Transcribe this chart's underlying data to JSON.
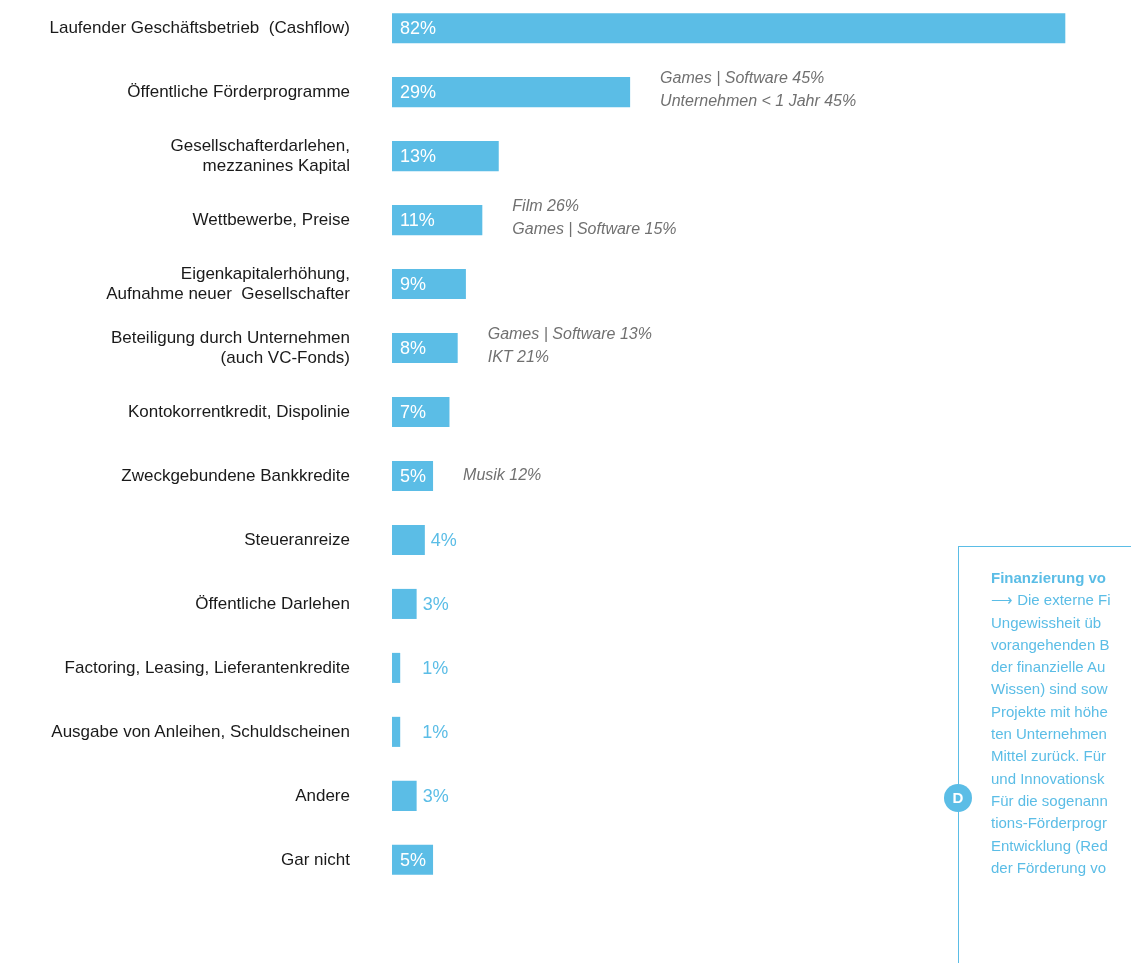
{
  "chart_data": [
    {
      "type": "bar",
      "orientation": "horizontal",
      "categories": [
        "Laufender Geschäftsbetrieb  (Cashflow)",
        "Öffentliche Förderprogramme",
        "Gesellschafterdarlehen,\nmezzanines Kapital",
        "Wettbewerbe, Preise",
        "Eigenkapitalerhöhung,\nAufnahme neuer  Gesellschafter",
        "Beteiligung durch Unternehmen\n(auch VC-Fonds)",
        "Kontokorrentkredit, Dispolinie",
        "Zweckgebundene Bankkredite",
        "Steueranreize",
        "Öffentliche Darlehen",
        "Factoring, Leasing, Lieferantenkredite",
        "Ausgabe von Anleihen, Schuldscheinen",
        "Andere",
        "Gar nicht"
      ],
      "values": [
        82,
        29,
        13,
        11,
        9,
        8,
        7,
        5,
        4,
        3,
        1,
        1,
        3,
        5
      ],
      "value_labels": [
        "82%",
        "29%",
        "13%",
        "11%",
        "9%",
        "8%",
        "7%",
        "5%",
        "4%",
        "3%",
        "1%",
        "1%",
        "3%",
        "5%"
      ],
      "color": "#5bbde6",
      "grid": false,
      "annotations": [
        "Games | Software 45%\nUnternehmen < 1 Jahr 45%",
        "Film 26%\nGames | Software 15%",
        "Games | Software 13%\nIKT 21%",
        "Musik 12%"
      ]
    },
    {
      "type": "other",
      "title": "Finanzierung vo",
      "annotations": [
        "D",
        "⟶  Die externe Fi",
        "Ungewissheit  üb",
        "vorangehenden B",
        "der finanzielle Au",
        "Wissen) sind sow",
        "Projekte mit höhe",
        "ten Unternehmen",
        "Mittel zurück. Für",
        "und Innovationsk",
        "Für die sogenann",
        "tions-Förderprogr",
        "Entwicklung (Red",
        "der Förderung vo"
      ]
    }
  ]
}
